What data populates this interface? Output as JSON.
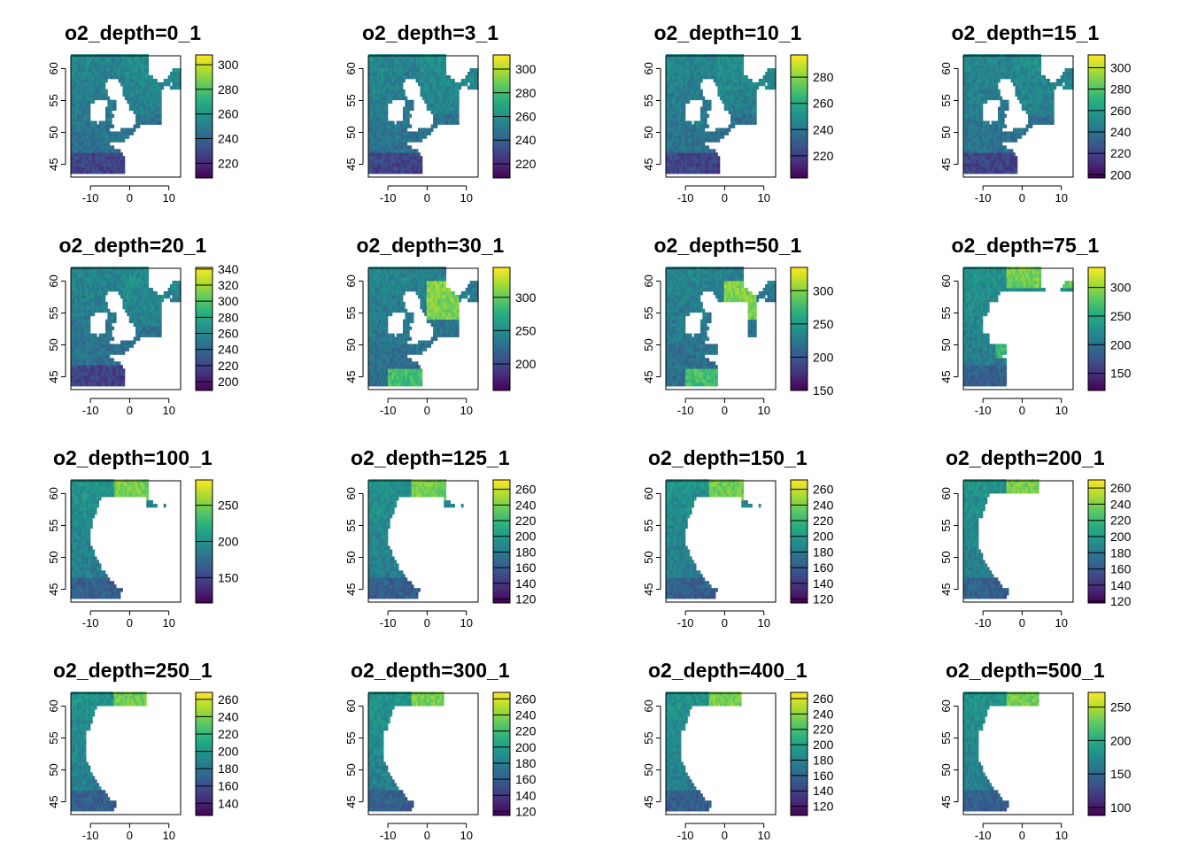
{
  "chart_data": [
    {
      "type": "heatmap",
      "title": "o2_depth=0_1",
      "x_ticks": [
        -10,
        0,
        10
      ],
      "y_ticks": [
        45,
        50,
        55,
        60
      ],
      "xlim": [
        -15,
        13
      ],
      "ylim": [
        43,
        62
      ],
      "legend_ticks": [
        220,
        240,
        260,
        280,
        300
      ],
      "legend_range": [
        208,
        308
      ],
      "coverage": "full",
      "highlight": "low"
    },
    {
      "type": "heatmap",
      "title": "o2_depth=3_1",
      "x_ticks": [
        -10,
        0,
        10
      ],
      "y_ticks": [
        45,
        50,
        55,
        60
      ],
      "xlim": [
        -15,
        13
      ],
      "ylim": [
        43,
        62
      ],
      "legend_ticks": [
        220,
        240,
        260,
        280,
        300
      ],
      "legend_range": [
        208,
        312
      ],
      "coverage": "full",
      "highlight": "low"
    },
    {
      "type": "heatmap",
      "title": "o2_depth=10_1",
      "x_ticks": [
        -10,
        0,
        10
      ],
      "y_ticks": [
        45,
        50,
        55,
        60
      ],
      "xlim": [
        -15,
        13
      ],
      "ylim": [
        43,
        62
      ],
      "legend_ticks": [
        220,
        240,
        260,
        280
      ],
      "legend_range": [
        203,
        297
      ],
      "coverage": "full",
      "highlight": "low"
    },
    {
      "type": "heatmap",
      "title": "o2_depth=15_1",
      "x_ticks": [
        -10,
        0,
        10
      ],
      "y_ticks": [
        45,
        50,
        55,
        60
      ],
      "xlim": [
        -15,
        13
      ],
      "ylim": [
        43,
        62
      ],
      "legend_ticks": [
        200,
        220,
        240,
        260,
        280,
        300
      ],
      "legend_range": [
        197,
        312
      ],
      "coverage": "full",
      "highlight": "low"
    },
    {
      "type": "heatmap",
      "title": "o2_depth=20_1",
      "x_ticks": [
        -10,
        0,
        10
      ],
      "y_ticks": [
        45,
        50,
        55,
        60
      ],
      "xlim": [
        -15,
        13
      ],
      "ylim": [
        43,
        62
      ],
      "legend_ticks": [
        200,
        220,
        240,
        260,
        280,
        300,
        320,
        340
      ],
      "legend_range": [
        189,
        342
      ],
      "coverage": "full",
      "highlight": "low"
    },
    {
      "type": "heatmap",
      "title": "o2_depth=30_1",
      "x_ticks": [
        -10,
        0,
        10
      ],
      "y_ticks": [
        45,
        50,
        55,
        60
      ],
      "xlim": [
        -15,
        13
      ],
      "ylim": [
        43,
        62
      ],
      "legend_ticks": [
        200,
        250,
        300
      ],
      "legend_range": [
        160,
        345
      ],
      "coverage": "full",
      "highlight": "north-sea"
    },
    {
      "type": "heatmap",
      "title": "o2_depth=50_1",
      "x_ticks": [
        -10,
        0,
        10
      ],
      "y_ticks": [
        45,
        50,
        55,
        60
      ],
      "xlim": [
        -15,
        13
      ],
      "ylim": [
        43,
        62
      ],
      "legend_ticks": [
        150,
        200,
        250,
        300
      ],
      "legend_range": [
        150,
        335
      ],
      "coverage": "partial",
      "highlight": "north-sea"
    },
    {
      "type": "heatmap",
      "title": "o2_depth=75_1",
      "x_ticks": [
        -10,
        0,
        10
      ],
      "y_ticks": [
        45,
        50,
        55,
        60
      ],
      "xlim": [
        -15,
        13
      ],
      "ylim": [
        43,
        62
      ],
      "legend_ticks": [
        150,
        200,
        250,
        300
      ],
      "legend_range": [
        120,
        335
      ],
      "coverage": "partial",
      "highlight": "north"
    },
    {
      "type": "heatmap",
      "title": "o2_depth=100_1",
      "x_ticks": [
        -10,
        0,
        10
      ],
      "y_ticks": [
        45,
        50,
        55,
        60
      ],
      "xlim": [
        -15,
        13
      ],
      "ylim": [
        43,
        62
      ],
      "legend_ticks": [
        150,
        200,
        250
      ],
      "legend_range": [
        115,
        285
      ],
      "coverage": "shelf",
      "highlight": "north"
    },
    {
      "type": "heatmap",
      "title": "o2_depth=125_1",
      "x_ticks": [
        -10,
        0,
        10
      ],
      "y_ticks": [
        45,
        50,
        55,
        60
      ],
      "xlim": [
        -15,
        13
      ],
      "ylim": [
        43,
        62
      ],
      "legend_ticks": [
        120,
        140,
        160,
        180,
        200,
        220,
        240,
        260
      ],
      "legend_range": [
        115,
        272
      ],
      "coverage": "shelf",
      "highlight": "north"
    },
    {
      "type": "heatmap",
      "title": "o2_depth=150_1",
      "x_ticks": [
        -10,
        0,
        10
      ],
      "y_ticks": [
        45,
        50,
        55,
        60
      ],
      "xlim": [
        -15,
        13
      ],
      "ylim": [
        43,
        62
      ],
      "legend_ticks": [
        120,
        140,
        160,
        180,
        200,
        220,
        240,
        260
      ],
      "legend_range": [
        115,
        272
      ],
      "coverage": "shelf",
      "highlight": "north"
    },
    {
      "type": "heatmap",
      "title": "o2_depth=200_1",
      "x_ticks": [
        -10,
        0,
        10
      ],
      "y_ticks": [
        45,
        50,
        55,
        60
      ],
      "xlim": [
        -15,
        13
      ],
      "ylim": [
        43,
        62
      ],
      "legend_ticks": [
        120,
        140,
        160,
        180,
        200,
        220,
        240,
        260
      ],
      "legend_range": [
        118,
        270
      ],
      "coverage": "slope",
      "highlight": "north"
    },
    {
      "type": "heatmap",
      "title": "o2_depth=250_1",
      "x_ticks": [
        -10,
        0,
        10
      ],
      "y_ticks": [
        45,
        50,
        55,
        60
      ],
      "xlim": [
        -15,
        13
      ],
      "ylim": [
        43,
        62
      ],
      "legend_ticks": [
        140,
        160,
        180,
        200,
        220,
        240,
        260
      ],
      "legend_range": [
        126,
        268
      ],
      "coverage": "slope",
      "highlight": "north"
    },
    {
      "type": "heatmap",
      "title": "o2_depth=300_1",
      "x_ticks": [
        -10,
        0,
        10
      ],
      "y_ticks": [
        45,
        50,
        55,
        60
      ],
      "xlim": [
        -15,
        13
      ],
      "ylim": [
        43,
        62
      ],
      "legend_ticks": [
        120,
        140,
        160,
        180,
        200,
        220,
        240,
        260
      ],
      "legend_range": [
        115,
        268
      ],
      "coverage": "slope",
      "highlight": "north"
    },
    {
      "type": "heatmap",
      "title": "o2_depth=400_1",
      "x_ticks": [
        -10,
        0,
        10
      ],
      "y_ticks": [
        45,
        50,
        55,
        60
      ],
      "xlim": [
        -15,
        13
      ],
      "ylim": [
        43,
        62
      ],
      "legend_ticks": [
        120,
        140,
        160,
        180,
        200,
        220,
        240,
        260
      ],
      "legend_range": [
        108,
        268
      ],
      "coverage": "slope",
      "highlight": "north"
    },
    {
      "type": "heatmap",
      "title": "o2_depth=500_1",
      "x_ticks": [
        -10,
        0,
        10
      ],
      "y_ticks": [
        45,
        50,
        55,
        60
      ],
      "xlim": [
        -15,
        13
      ],
      "ylim": [
        43,
        62
      ],
      "legend_ticks": [
        100,
        150,
        200,
        250
      ],
      "legend_range": [
        88,
        272
      ],
      "coverage": "slope",
      "highlight": "north"
    }
  ],
  "colors": {
    "viridis": [
      "#440154",
      "#472d7b",
      "#3b528b",
      "#2c728e",
      "#21918c",
      "#28ae80",
      "#5ec962",
      "#addc30",
      "#fde725"
    ],
    "frame": "#000000",
    "background": "#ffffff"
  }
}
